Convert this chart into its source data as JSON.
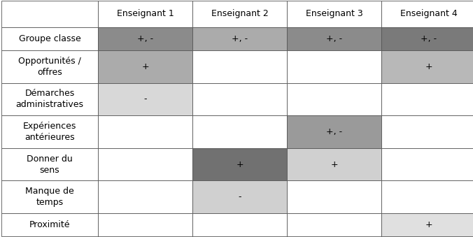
{
  "columns": [
    "",
    "Enseignant 1",
    "Enseignant 2",
    "Enseignant 3",
    "Enseignant 4"
  ],
  "rows": [
    "Groupe classe",
    "Opportunités /\noffres",
    "Démarches\nadministratives",
    "Expériences\nantérieures",
    "Donner du\nsens",
    "Manque de\ntemps",
    "Proximité"
  ],
  "row_heights": [
    1,
    1.4,
    1.4,
    1.4,
    1.4,
    1.4,
    1
  ],
  "cell_texts": [
    [
      "+, -",
      "+, -",
      "+, -",
      "+, -"
    ],
    [
      "+",
      "",
      "",
      "+"
    ],
    [
      "-",
      "",
      "",
      ""
    ],
    [
      "",
      "",
      "+, -",
      ""
    ],
    [
      "",
      "+",
      "+",
      ""
    ],
    [
      "",
      "-",
      "",
      ""
    ],
    [
      "",
      "",
      "",
      "+"
    ]
  ],
  "cell_colors": [
    [
      "#8b8b8b",
      "#ababab",
      "#8b8b8b",
      "#7a7a7a"
    ],
    [
      "#ababab",
      "#ffffff",
      "#ffffff",
      "#b8b8b8"
    ],
    [
      "#d8d8d8",
      "#ffffff",
      "#ffffff",
      "#ffffff"
    ],
    [
      "#ffffff",
      "#ffffff",
      "#9a9a9a",
      "#ffffff"
    ],
    [
      "#ffffff",
      "#717171",
      "#d0d0d0",
      "#ffffff"
    ],
    [
      "#ffffff",
      "#d0d0d0",
      "#ffffff",
      "#ffffff"
    ],
    [
      "#ffffff",
      "#ffffff",
      "#ffffff",
      "#e0e0e0"
    ]
  ],
  "header_color": "#ffffff",
  "label_color": "#ffffff",
  "text_color": "#000000",
  "border_color": "#555555",
  "fig_width": 6.76,
  "fig_height": 3.39,
  "dpi": 100,
  "header_fontsize": 9,
  "cell_fontsize": 9,
  "label_fontsize": 9
}
